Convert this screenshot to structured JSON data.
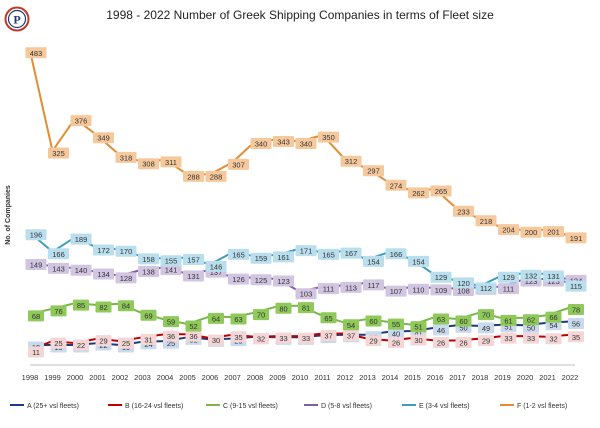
{
  "chart_data": {
    "type": "line",
    "title": "1998 - 2022 Number of Greek Shipping Companies in terms of Fleet size",
    "ylabel": "No. of Companies",
    "xlabel": "",
    "x": [
      "1998",
      "1999",
      "2000",
      "2001",
      "2002",
      "2003",
      "2004",
      "2005",
      "2006",
      "2007",
      "2008",
      "2009",
      "2010",
      "2011",
      "2012",
      "2013",
      "2014",
      "2015",
      "2016",
      "2017",
      "2018",
      "2019",
      "2020",
      "2021",
      "2022"
    ],
    "ylim": [
      0,
      500
    ],
    "grid": false,
    "legend_position": "bottom",
    "series": [
      {
        "name": "A (25+ vsl fleets)",
        "color": "#1f3a7a",
        "label_bg": "#c9d9ee",
        "values": [
          19,
          19,
          19,
          22,
          19,
          24,
          25,
          31,
          28,
          29,
          32,
          31,
          31,
          34,
          35,
          35,
          40,
          41,
          46,
          50,
          49,
          51,
          50,
          54,
          56
        ]
      },
      {
        "name": "B (16-24 vsl fleets)",
        "color": "#c00000",
        "label_bg": "#f4d6d6",
        "values": [
          11,
          25,
          22,
          29,
          25,
          31,
          36,
          36,
          30,
          35,
          32,
          33,
          33,
          37,
          37,
          29,
          26,
          30,
          26,
          26,
          29,
          33,
          33,
          32,
          35
        ]
      },
      {
        "name": "C (9-15 vsl fleets)",
        "color": "#7ab648",
        "label_bg": "#8fc95a",
        "values": [
          68,
          76,
          85,
          82,
          84,
          69,
          59,
          52,
          64,
          63,
          70,
          80,
          81,
          65,
          54,
          60,
          55,
          51,
          63,
          60,
          70,
          61,
          62,
          66,
          78
        ]
      },
      {
        "name": "D (5-8 vsl fleets)",
        "color": "#7f5fa0",
        "label_bg": "#d2c5e2",
        "values": [
          149,
          143,
          140,
          134,
          128,
          138,
          141,
          131,
          137,
          126,
          125,
          123,
          103,
          111,
          113,
          117,
          107,
          110,
          109,
          108,
          110,
          111,
          123,
          123,
          124
        ]
      },
      {
        "name": "E (3-4 vsl fleets)",
        "color": "#3e9cbf",
        "label_bg": "#b9dfee",
        "values": [
          196,
          166,
          189,
          172,
          170,
          158,
          155,
          157,
          146,
          165,
          159,
          161,
          171,
          165,
          167,
          154,
          166,
          154,
          129,
          120,
          112,
          129,
          132,
          131,
          115
        ]
      },
      {
        "name": "F (1-2 vsl fleets)",
        "color": "#e38c32",
        "label_bg": "#f6c99d",
        "values": [
          483,
          325,
          376,
          349,
          318,
          308,
          311,
          288,
          288,
          307,
          340,
          343,
          340,
          350,
          312,
          297,
          274,
          262,
          265,
          233,
          218,
          204,
          200,
          201,
          191
        ]
      }
    ]
  }
}
